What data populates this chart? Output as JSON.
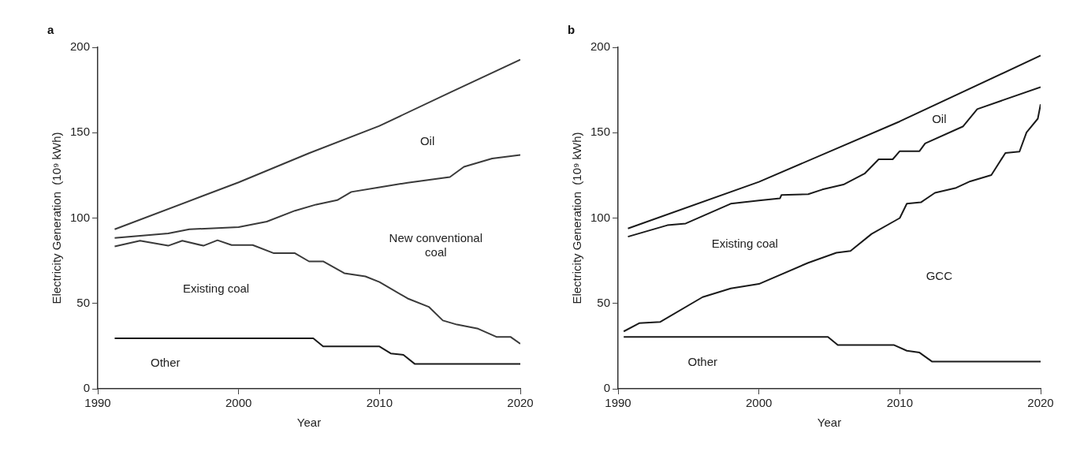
{
  "chart_data": [
    {
      "type": "line",
      "title": "a",
      "xlabel": "Year",
      "ylabel": "Electricity Generation  (10⁹ kWh)",
      "xlim": [
        1990,
        2020
      ],
      "xticks": [
        1990,
        2000,
        2010,
        2020
      ],
      "ylim": [
        0,
        200
      ],
      "yticks": [
        0,
        50,
        100,
        150,
        200
      ],
      "grid": false,
      "marker": "none",
      "line_style": "solid",
      "series": [
        {
          "color": "#3a3a3a",
          "x": [
            1991.2,
            2000,
            2005,
            2010,
            2015,
            2020
          ],
          "values": [
            93.4,
            120.9,
            138,
            154,
            173.5,
            192.8
          ]
        },
        {
          "color": "#3a3a3a",
          "x": [
            1991.2,
            1995,
            1996.5,
            2000,
            2002,
            2004,
            2005.5,
            2007,
            2008,
            2010,
            2012,
            2015,
            2016,
            2018,
            2020
          ],
          "values": [
            88.3,
            91,
            93.4,
            94.7,
            97.9,
            104.3,
            107.9,
            110.5,
            115.3,
            118,
            120.7,
            124,
            130,
            134.9,
            137
          ]
        },
        {
          "color": "#3a3a3a",
          "x": [
            1991.2,
            1993,
            1995,
            1996,
            1997.5,
            1998.5,
            1999.5,
            2001,
            2002.5,
            2004,
            2005,
            2006,
            2007.5,
            2009,
            2010,
            2012,
            2013.5,
            2014.5,
            2015.5,
            2017,
            2018.3,
            2019.3,
            2020
          ],
          "values": [
            83.4,
            86.7,
            83.8,
            86.7,
            83.8,
            87,
            84.2,
            84.2,
            79.4,
            79.4,
            74.6,
            74.6,
            67.7,
            65.8,
            62.5,
            52.9,
            48,
            40,
            37.6,
            35.2,
            30.4,
            30.4,
            26.4
          ]
        },
        {
          "color": "#1a1a1a",
          "x": [
            1991.2,
            2005.3,
            2006,
            2010,
            2010.8,
            2011.7,
            2012.5,
            2020
          ],
          "values": [
            29.6,
            29.6,
            24.8,
            24.8,
            20.7,
            19.9,
            14.6,
            14.6
          ]
        }
      ],
      "annotations": [
        "Oil",
        "New conventional coal",
        "Existing coal",
        "Other"
      ]
    },
    {
      "type": "line",
      "title": "b",
      "xlabel": "Year",
      "ylabel": "Electricity Generation  (10⁹ kWh)",
      "xlim": [
        1990,
        2020
      ],
      "xticks": [
        1990,
        2000,
        2010,
        2020
      ],
      "ylim": [
        0,
        200
      ],
      "yticks": [
        0,
        50,
        100,
        150,
        200
      ],
      "grid": false,
      "marker": "none",
      "line_style": "solid",
      "series": [
        {
          "color": "#1a1a1a",
          "x": [
            1990.7,
            2000,
            2010,
            2020
          ],
          "values": [
            93.9,
            121.2,
            156.6,
            195.2
          ]
        },
        {
          "color": "#1a1a1a",
          "x": [
            1990.7,
            1993.5,
            1994.8,
            1998,
            2000,
            2001.5,
            2001.6,
            2003.5,
            2004.5,
            2006,
            2007.5,
            2008.5,
            2009.5,
            2010,
            2011.4,
            2011.8,
            2014.5,
            2015.5,
            2020
          ],
          "values": [
            89.1,
            95.8,
            96.8,
            108.4,
            110.3,
            111.6,
            113.5,
            114,
            116.7,
            119.6,
            126,
            134.4,
            134.4,
            139.2,
            139.2,
            143.7,
            153.7,
            163.8,
            176.7
          ]
        },
        {
          "color": "#1a1a1a",
          "x": [
            1990.4,
            1991.5,
            1993,
            1996,
            1998,
            2000,
            2003.5,
            2005.5,
            2006.5,
            2008,
            2010,
            2010.5,
            2011.5,
            2012.5,
            2014,
            2015,
            2016.5,
            2017.5,
            2018.5,
            2019,
            2019.8,
            2020
          ],
          "values": [
            33.6,
            38.4,
            39.2,
            53.7,
            58.8,
            61.4,
            73.8,
            79.7,
            80.7,
            90.7,
            100,
            108.4,
            109.2,
            114.8,
            117.7,
            121.5,
            125.2,
            138.1,
            138.9,
            150.2,
            158.2,
            166.6
          ]
        },
        {
          "color": "#1a1a1a",
          "x": [
            1990.4,
            2004.9,
            2005.6,
            2009.6,
            2010.5,
            2011.4,
            2012.3,
            2020
          ],
          "values": [
            30.4,
            30.4,
            25.6,
            25.6,
            22.3,
            21.2,
            15.9,
            15.9
          ]
        }
      ],
      "annotations": [
        "Oil",
        "Existing coal",
        "GCC",
        "Other"
      ]
    }
  ]
}
